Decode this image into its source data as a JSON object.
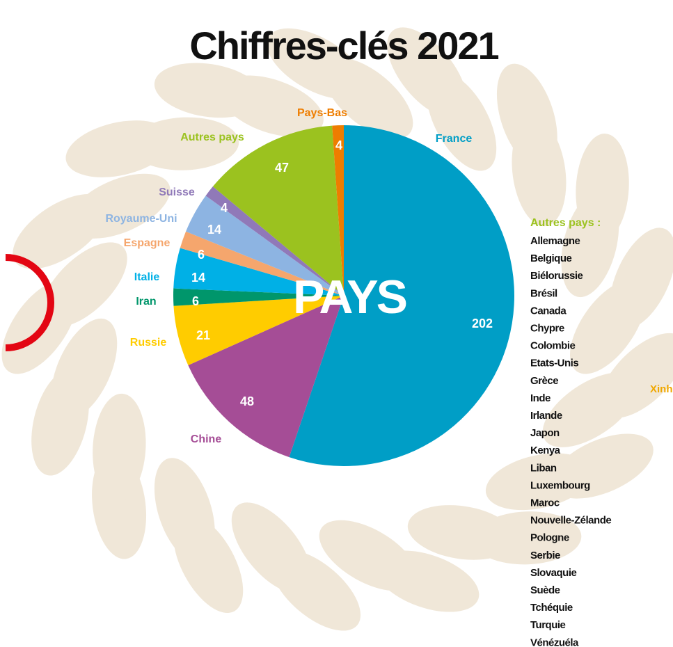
{
  "chart_data": {
    "type": "pie",
    "title": "Chiffres-clés 2021",
    "center_label": "PAYS",
    "categories": [
      "France",
      "Chine",
      "Russie",
      "Iran",
      "Italie",
      "Espagne",
      "Royaume-Uni",
      "Suisse",
      "Autres pays",
      "Pays-Bas"
    ],
    "values": [
      202,
      48,
      21,
      6,
      14,
      6,
      14,
      4,
      47,
      4
    ],
    "colors": [
      "#009ec6",
      "#a54d96",
      "#ffcc00",
      "#00966b",
      "#00b0e6",
      "#f5a66d",
      "#8db4e2",
      "#9079b8",
      "#9bc21f",
      "#ee7d00"
    ],
    "others_title": "Autres pays :",
    "others": [
      "Allemagne",
      "Belgique",
      "Biélorussie",
      "Brésil",
      "Canada",
      "Chypre",
      "Colombie",
      "Etats-Unis",
      "Grèce",
      "Inde",
      "Irlande",
      "Japon",
      "Kenya",
      "Liban",
      "Luxembourg",
      "Maroc",
      "Nouvelle-Zélande",
      "Pologne",
      "Serbie",
      "Slovaquie",
      "Suède",
      "Tchéquie",
      "Turquie",
      "Vénézuéla"
    ],
    "side_note": "Xinh"
  }
}
